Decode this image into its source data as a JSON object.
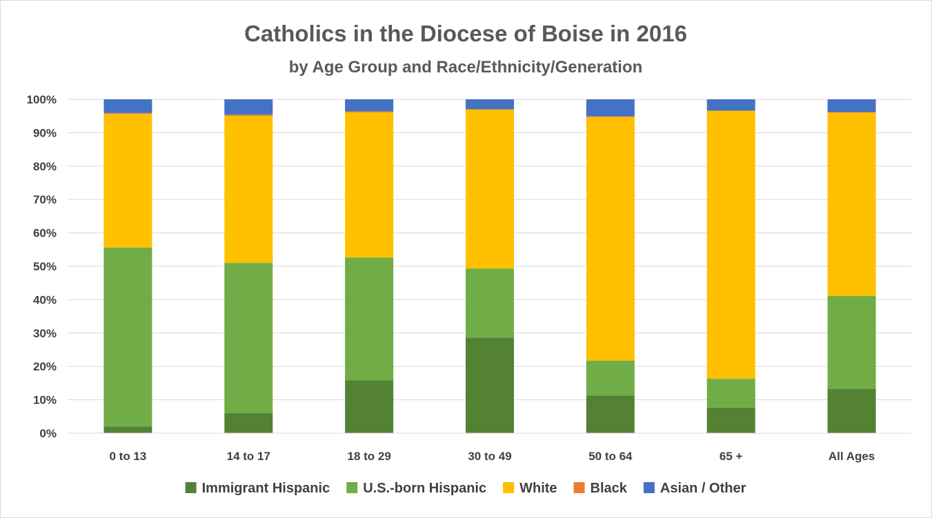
{
  "chart_data": {
    "type": "bar",
    "stacked": true,
    "title": "Catholics in the Diocese of Boise in 2016",
    "subtitle": "by Age Group and Race/Ethnicity/Generation",
    "xlabel": "",
    "ylabel": "",
    "ylim": [
      0,
      100
    ],
    "y_tick_format": "percent",
    "yticks": [
      "0%",
      "10%",
      "20%",
      "30%",
      "40%",
      "50%",
      "60%",
      "70%",
      "80%",
      "90%",
      "100%"
    ],
    "grid": true,
    "legend_position": "bottom",
    "categories": [
      "0 to 13",
      "14 to 17",
      "18 to 29",
      "30 to 49",
      "50 to 64",
      "65 +",
      "All Ages"
    ],
    "series": [
      {
        "name": "Immigrant Hispanic",
        "color": "#548235",
        "values": [
          2,
          6,
          15.8,
          28.6,
          11.3,
          7.7,
          13.3
        ]
      },
      {
        "name": "U.S.-born Hispanic",
        "color": "#70ad47",
        "values": [
          53.6,
          45,
          36.8,
          20.7,
          10.4,
          8.6,
          27.8
        ]
      },
      {
        "name": "White",
        "color": "#ffc000",
        "values": [
          40,
          44,
          43.5,
          47.7,
          73,
          80.3,
          54.9
        ]
      },
      {
        "name": "Black",
        "color": "#ed7d31",
        "values": [
          0.3,
          0.4,
          0.3,
          0,
          0.2,
          0,
          0.2
        ]
      },
      {
        "name": "Asian / Other",
        "color": "#4472c4",
        "values": [
          4.1,
          4.6,
          3.6,
          3,
          5.1,
          3.4,
          3.8
        ]
      }
    ]
  }
}
